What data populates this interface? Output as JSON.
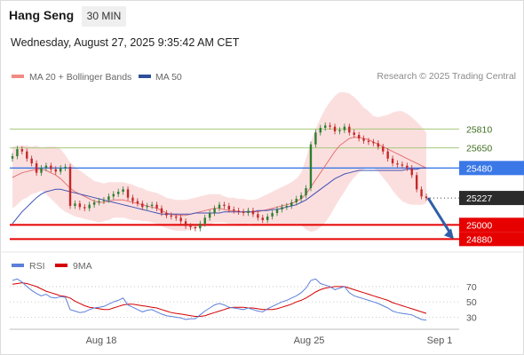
{
  "header": {
    "title": "Hang Seng",
    "timeframe": "30 MIN",
    "timestamp": "Wednesday, August 27, 2025 9:35:42 AM CET",
    "credit": "Research © 2025 Trading Central"
  },
  "colors": {
    "candle_up": "#2e7d32",
    "candle_down": "#c62828",
    "bollinger": "#f7c5c5",
    "ma20": "#e57373",
    "ma50": "#3f51b5",
    "resistance": "#a5c87a",
    "pivot": "#3b78e7",
    "support": "#e60000",
    "rsi": "#5b7fd9",
    "rsi_ma": "#d50000",
    "arrow": "#2f5fa8"
  },
  "chart_data": [
    {
      "type": "candlestick",
      "title": "Hang Seng",
      "interval": "30 MIN",
      "legend": [
        "MA 20 + Bollinger Bands",
        "MA 50"
      ],
      "legend_position": "top-left",
      "x_ticks": [
        "Aug 18",
        "Aug 25",
        "Sep 1"
      ],
      "ylim": [
        24800,
        26150
      ],
      "levels": [
        {
          "label": "25810",
          "value": 25810,
          "kind": "resistance"
        },
        {
          "label": "25650",
          "value": 25650,
          "kind": "resistance"
        },
        {
          "label": "25480",
          "value": 25480,
          "kind": "pivot"
        },
        {
          "label": "25227",
          "value": 25227,
          "kind": "last"
        },
        {
          "label": "25000",
          "value": 25000,
          "kind": "support"
        },
        {
          "label": "24880",
          "value": 24880,
          "kind": "support"
        }
      ],
      "close": [
        25580,
        25640,
        25620,
        25560,
        25520,
        25440,
        25480,
        25500,
        25470,
        25450,
        25480,
        25490,
        25160,
        25180,
        25150,
        25140,
        25170,
        25190,
        25200,
        25210,
        25240,
        25260,
        25280,
        25300,
        25230,
        25200,
        25180,
        25150,
        25160,
        25170,
        25140,
        25100,
        25080,
        25070,
        25060,
        25030,
        24990,
        24980,
        24970,
        25010,
        25060,
        25100,
        25140,
        25170,
        25160,
        25130,
        25120,
        25110,
        25100,
        25120,
        25090,
        25060,
        25040,
        25070,
        25100,
        25130,
        25150,
        25160,
        25190,
        25220,
        25250,
        25310,
        25680,
        25780,
        25820,
        25840,
        25830,
        25790,
        25800,
        25830,
        25780,
        25760,
        25730,
        25710,
        25700,
        25690,
        25660,
        25620,
        25560,
        25520,
        25510,
        25500,
        25480,
        25420,
        25300,
        25240,
        25227
      ],
      "ma20": [
        25400,
        25420,
        25440,
        25450,
        25460,
        25470,
        25470,
        25460,
        25440,
        25420,
        25390,
        25350,
        25310,
        25280,
        25260,
        25240,
        25220,
        25200,
        25190,
        25190,
        25200,
        25210,
        25210,
        25210,
        25200,
        25190,
        25180,
        25170,
        25160,
        25150,
        25140,
        25120,
        25100,
        25090,
        25080,
        25080,
        25080,
        25090,
        25100,
        25110,
        25120,
        25130,
        25140,
        25140,
        25130,
        25120,
        25120,
        25110,
        25110,
        25110,
        25110,
        25110,
        25120,
        25130,
        25140,
        25150,
        25160,
        25170,
        25180,
        25200,
        25220,
        25260,
        25320,
        25380,
        25440,
        25500,
        25560,
        25620,
        25670,
        25700,
        25730,
        25740,
        25740,
        25730,
        25720,
        25700,
        25680,
        25660,
        25640,
        25620,
        25600,
        25580,
        25560,
        25540,
        25520,
        25500,
        25480
      ],
      "ma50": [
        25010,
        25060,
        25110,
        25150,
        25190,
        25230,
        25260,
        25280,
        25290,
        25300,
        25300,
        25290,
        25280,
        25270,
        25260,
        25250,
        25240,
        25230,
        25220,
        25210,
        25200,
        25190,
        25180,
        25170,
        25160,
        25150,
        25140,
        25130,
        25120,
        25110,
        25100,
        25090,
        25090,
        25090,
        25090,
        25090,
        25090,
        25090,
        25100,
        25100,
        25100,
        25100,
        25100,
        25100,
        25110,
        25110,
        25110,
        25110,
        25110,
        25110,
        25110,
        25120,
        25120,
        25120,
        25130,
        25130,
        25140,
        25150,
        25160,
        25170,
        25190,
        25210,
        25240,
        25270,
        25300,
        25330,
        25360,
        25390,
        25410,
        25430,
        25440,
        25450,
        25460,
        25460,
        25460,
        25460,
        25460,
        25460,
        25460,
        25460,
        25460,
        25460,
        25470,
        25470,
        25470,
        25480,
        25480
      ],
      "bollinger_width": [
        260,
        250,
        230,
        220,
        200,
        200,
        180,
        200,
        220,
        240,
        250,
        240,
        220,
        210,
        200,
        190,
        180,
        170,
        170,
        160,
        160,
        150,
        150,
        150,
        150,
        150,
        140,
        140,
        130,
        130,
        130,
        130,
        130,
        130,
        130,
        130,
        130,
        130,
        130,
        130,
        130,
        130,
        120,
        120,
        110,
        110,
        110,
        110,
        110,
        100,
        100,
        110,
        120,
        130,
        140,
        150,
        160,
        170,
        180,
        190,
        220,
        300,
        380,
        430,
        460,
        480,
        480,
        470,
        450,
        420,
        380,
        340,
        300,
        260,
        240,
        220,
        230,
        260,
        290,
        330,
        360,
        380,
        380,
        370,
        350,
        330,
        300
      ],
      "forecast_arrow": {
        "from": 25227,
        "to": 24880
      }
    },
    {
      "type": "line",
      "title": "RSI",
      "legend": [
        "RSI",
        "9MA"
      ],
      "y_ticks": [
        30,
        50,
        70
      ],
      "ylim": [
        20,
        85
      ],
      "series": [
        {
          "name": "RSI",
          "values": [
            78,
            80,
            76,
            70,
            65,
            61,
            58,
            60,
            56,
            55,
            57,
            56,
            40,
            38,
            36,
            37,
            40,
            42,
            43,
            44,
            47,
            50,
            52,
            55,
            46,
            43,
            40,
            37,
            39,
            40,
            37,
            34,
            32,
            31,
            30,
            29,
            27,
            28,
            28,
            33,
            38,
            42,
            46,
            48,
            46,
            43,
            42,
            41,
            40,
            42,
            40,
            38,
            37,
            41,
            44,
            47,
            50,
            52,
            55,
            58,
            62,
            68,
            78,
            80,
            74,
            72,
            70,
            66,
            68,
            70,
            62,
            58,
            56,
            54,
            52,
            50,
            48,
            45,
            42,
            38,
            36,
            35,
            34,
            33,
            30,
            27,
            26
          ]
        },
        {
          "name": "9MA",
          "values": [
            73,
            74,
            75,
            74,
            72,
            70,
            67,
            64,
            62,
            60,
            58,
            57,
            55,
            51,
            48,
            45,
            43,
            42,
            41,
            40,
            40,
            42,
            44,
            46,
            47,
            47,
            46,
            45,
            44,
            43,
            42,
            40,
            38,
            36,
            35,
            34,
            33,
            32,
            31,
            31,
            32,
            34,
            36,
            38,
            40,
            42,
            43,
            43,
            43,
            42,
            42,
            41,
            40,
            40,
            40,
            41,
            43,
            45,
            47,
            50,
            52,
            55,
            59,
            63,
            66,
            68,
            69,
            70,
            70,
            70,
            68,
            66,
            64,
            62,
            60,
            58,
            56,
            54,
            52,
            49,
            47,
            45,
            43,
            41,
            39,
            37,
            35
          ]
        }
      ]
    }
  ]
}
